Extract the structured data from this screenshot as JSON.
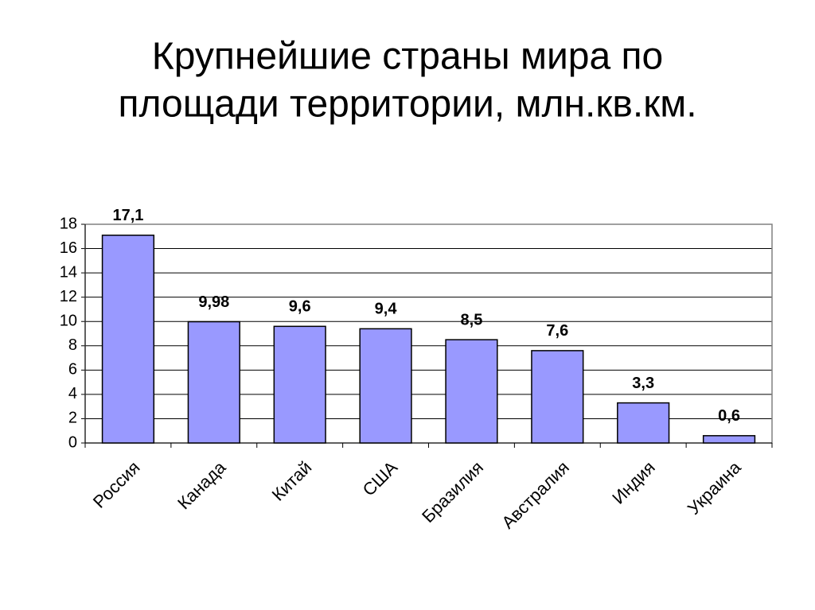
{
  "chart_data": {
    "type": "bar",
    "title": [
      "Крупнейшие страны мира по",
      "площади территории, млн.кв.км."
    ],
    "categories": [
      "Россия",
      "Канада",
      "Китай",
      "США",
      "Бразилия",
      "Австралия",
      "Индия",
      "Украина"
    ],
    "values": [
      17.1,
      9.98,
      9.6,
      9.4,
      8.5,
      7.6,
      3.3,
      0.6
    ],
    "value_labels": [
      "17,1",
      "9,98",
      "9,6",
      "9,4",
      "8,5",
      "7,6",
      "3,3",
      "0,6"
    ],
    "color": "#9999ff",
    "ylim": [
      0,
      18
    ],
    "yticks": [
      0,
      2,
      4,
      6,
      8,
      10,
      12,
      14,
      16,
      18
    ],
    "grid": true
  }
}
